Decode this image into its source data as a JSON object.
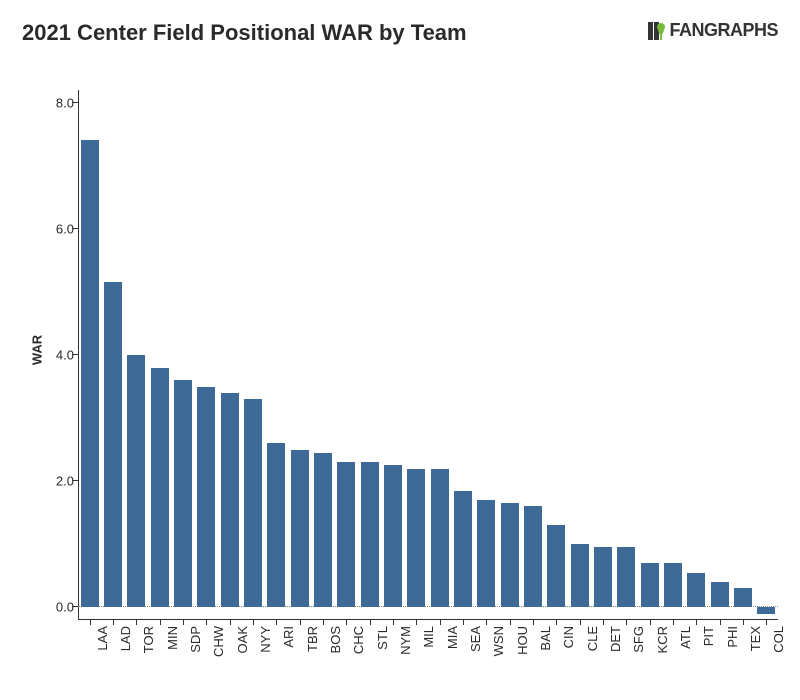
{
  "header": {
    "title": "2021 Center Field Positional WAR by Team",
    "logo_text": "FANGRAPHS",
    "logo_accent_color": "#79b93c",
    "logo_text_color": "#333333"
  },
  "chart": {
    "type": "bar",
    "ylabel": "WAR",
    "ylim": [
      -0.2,
      8.2
    ],
    "ytick_step": 2.0,
    "yticks": [
      0.0,
      2.0,
      4.0,
      6.0,
      8.0
    ],
    "label_fontsize": 13,
    "title_fontsize": 22,
    "bar_color": "#3d6a97",
    "background_color": "#ffffff",
    "axis_color": "#333333",
    "zero_line_color": "#888888",
    "bar_width_ratio": 0.78,
    "categories": [
      "LAA",
      "LAD",
      "TOR",
      "MIN",
      "SDP",
      "CHW",
      "OAK",
      "NYY",
      "ARI",
      "TBR",
      "BOS",
      "CHC",
      "STL",
      "NYM",
      "MIL",
      "MIA",
      "SEA",
      "WSN",
      "HOU",
      "BAL",
      "CIN",
      "CLE",
      "DET",
      "SFG",
      "KCR",
      "ATL",
      "PIT",
      "PHI",
      "TEX",
      "COL"
    ],
    "values": [
      7.4,
      5.15,
      4.0,
      3.8,
      3.6,
      3.5,
      3.4,
      3.3,
      2.6,
      2.5,
      2.45,
      2.3,
      2.3,
      2.25,
      2.2,
      2.2,
      1.85,
      1.7,
      1.65,
      1.6,
      1.3,
      1.0,
      0.95,
      0.95,
      0.7,
      0.7,
      0.55,
      0.4,
      0.3,
      -0.1
    ]
  }
}
